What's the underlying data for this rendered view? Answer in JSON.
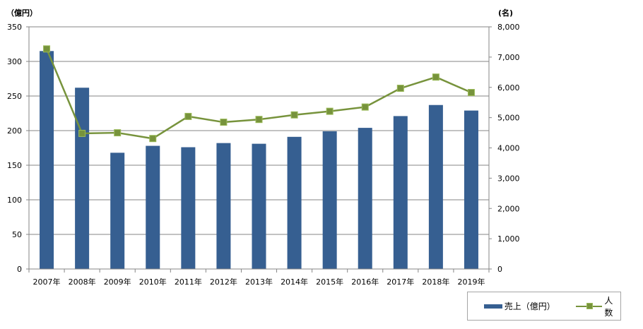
{
  "chart_data": {
    "type": "bar+line",
    "categories": [
      "2007年",
      "2008年",
      "2009年",
      "2010年",
      "2011年",
      "2012年",
      "2013年",
      "2014年",
      "2015年",
      "2016年",
      "2017年",
      "2018年",
      "2019年"
    ],
    "series": [
      {
        "name": "売上（億円）",
        "type": "bar",
        "axis": "left",
        "color": "#365f91",
        "values": [
          315,
          262,
          168,
          178,
          176,
          182,
          181,
          191,
          199,
          204,
          221,
          237,
          229
        ]
      },
      {
        "name": "人数",
        "type": "line",
        "axis": "right",
        "color": "#77933c",
        "values": [
          7270,
          4480,
          4500,
          4310,
          5040,
          4850,
          4940,
          5090,
          5210,
          5350,
          5970,
          6340,
          5830
        ]
      }
    ],
    "left_axis": {
      "unit": "（億円）",
      "ylim": [
        0,
        350
      ],
      "ticks": [
        "0",
        "50",
        "100",
        "150",
        "200",
        "250",
        "300",
        "350"
      ]
    },
    "right_axis": {
      "unit": "(名)",
      "ylim": [
        0,
        8000
      ],
      "ticks": [
        "0",
        "1,000",
        "2,000",
        "3,000",
        "4,000",
        "5,000",
        "6,000",
        "7,000",
        "8,000"
      ]
    },
    "grid": true,
    "legend_position": "bottom-right"
  }
}
